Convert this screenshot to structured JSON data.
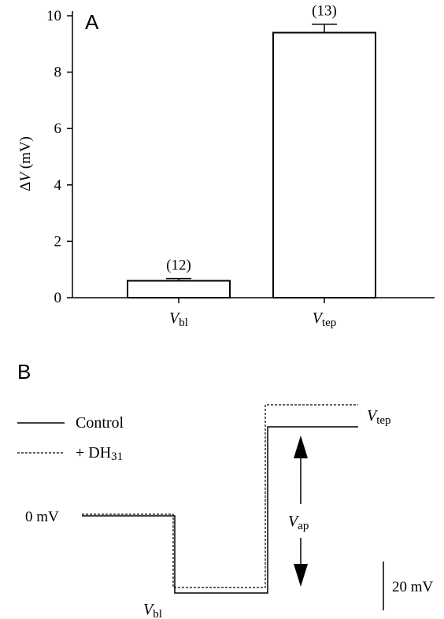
{
  "panel_a": {
    "label": "A",
    "ylabel_prefix": "Δ",
    "ylabel_var": "V",
    "ylabel_unit": " (mV)",
    "yticks": [
      0,
      2,
      4,
      6,
      8,
      10
    ]
  },
  "panel_b": {
    "label": "B",
    "legend": {
      "control": "Control",
      "dh31_prefix": "+ DH",
      "dh31_sub": "31"
    },
    "zero_label": "0 mV",
    "v_tep": {
      "main": "V",
      "sub": "tep"
    },
    "v_bl": {
      "main": "V",
      "sub": "bl"
    },
    "v_ap": {
      "main": "V",
      "sub": "ap"
    },
    "scale_bar": "20 mV"
  },
  "chart_data": [
    {
      "type": "bar",
      "categories": [
        {
          "main": "V",
          "sub": "bl"
        },
        {
          "main": "V",
          "sub": "tep"
        }
      ],
      "values": [
        0.6,
        9.4
      ],
      "errors": [
        0.08,
        0.3
      ],
      "n_labels": [
        "(12)",
        "(13)"
      ],
      "ylabel": "ΔV (mV)",
      "ylim": [
        0,
        10.8
      ],
      "colors": {
        "bar_fill": "#ffffff",
        "bar_stroke": "#000000"
      }
    }
  ]
}
